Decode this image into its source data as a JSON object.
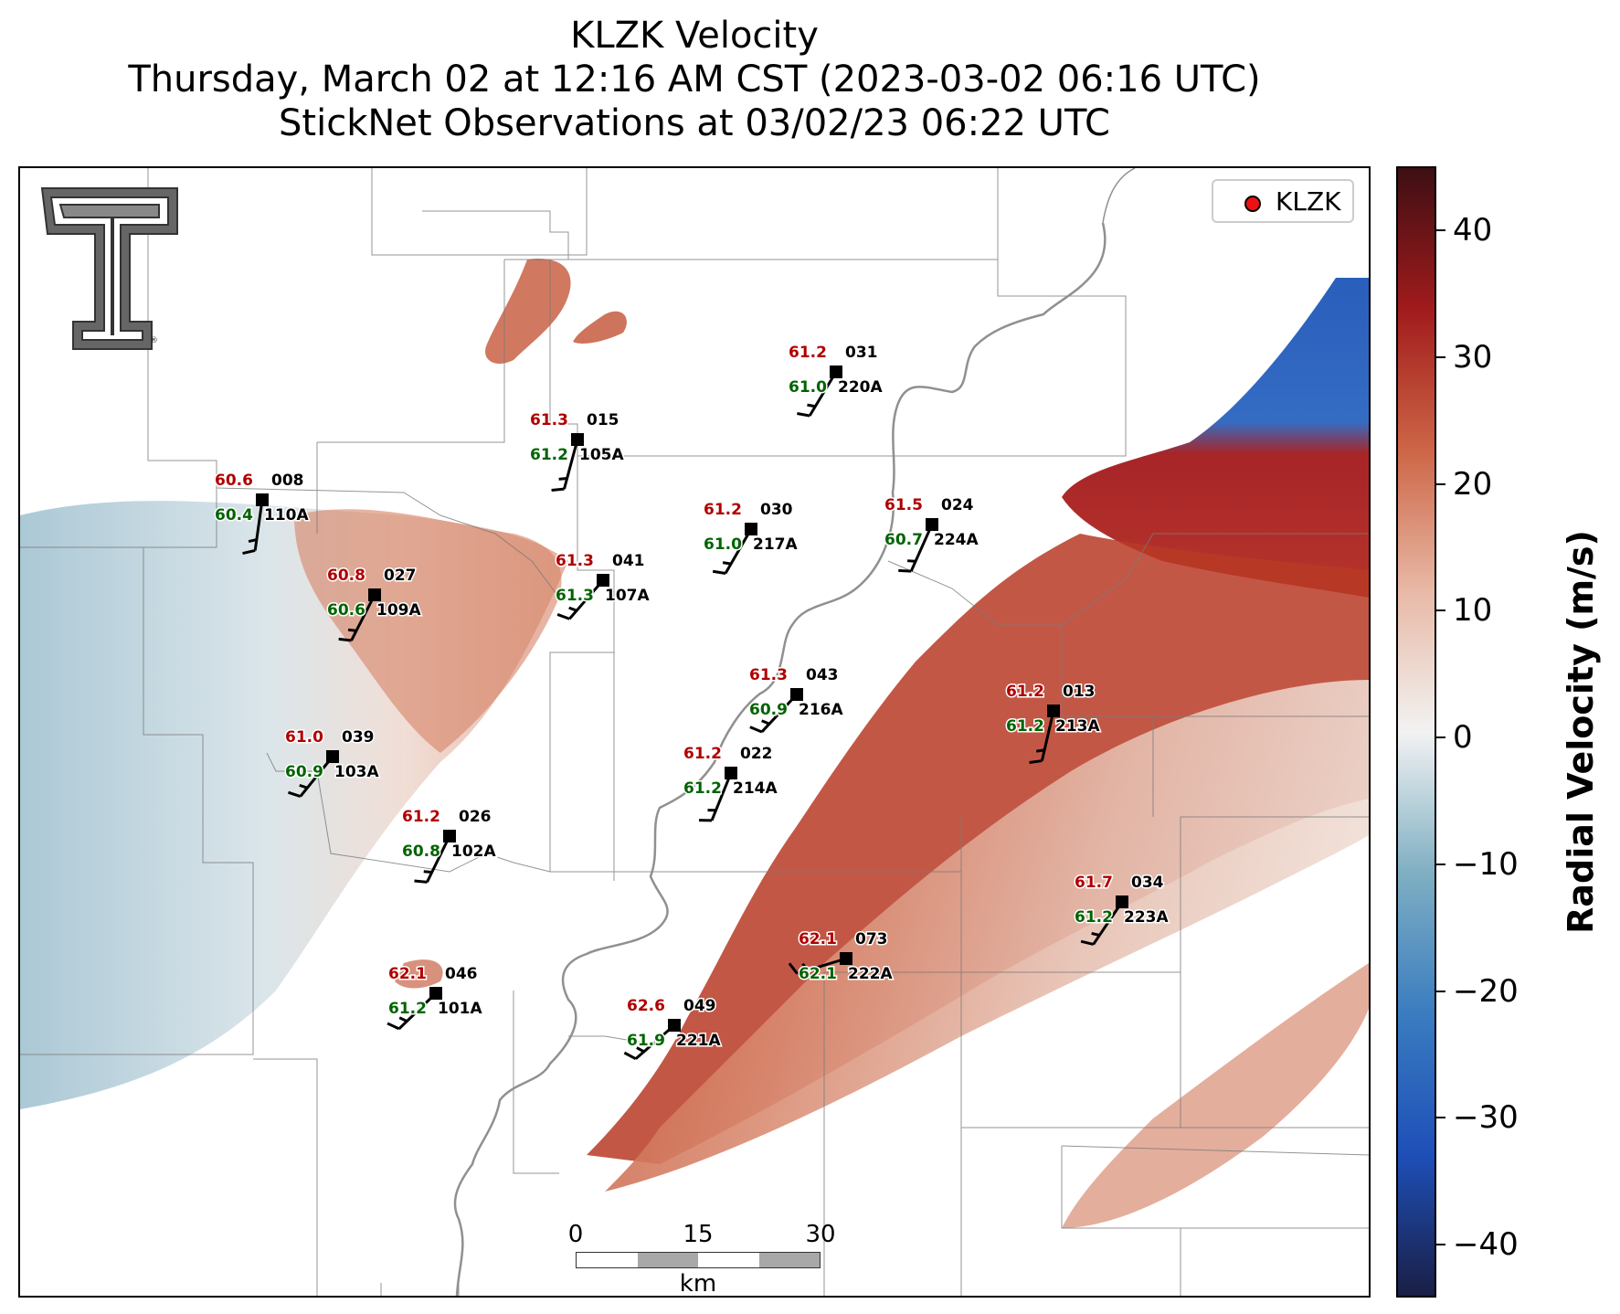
{
  "title": {
    "line1": "KLZK Velocity",
    "line2": "Thursday, March 02 at 12:16 AM CST (2023-03-02 06:16 UTC)",
    "line3": "StickNet Observations at 03/02/23 06:22 UTC"
  },
  "legend": {
    "label": "KLZK",
    "marker_color": "#ee1111"
  },
  "logo": {
    "icon": "texas-tech-double-t-logo",
    "mark": "®"
  },
  "colorbar": {
    "label": "Radial Velocity (m/s)",
    "ticks": [
      "40",
      "30",
      "20",
      "10",
      "0",
      "−10",
      "−20",
      "−30",
      "−40"
    ],
    "range": [
      -45,
      45
    ],
    "colors": {
      "neg_max": "#1a1f45",
      "neg_strong": "#1e4fb8",
      "neg_mid": "#3a7cc0",
      "neg_light": "#7fafc2",
      "zero": "#f2f2f2",
      "pos_light": "#e8b9a6",
      "pos_mid": "#cd6546",
      "pos_strong": "#a11b1c",
      "pos_max": "#3d0f14"
    }
  },
  "scalebar": {
    "ticks": [
      "0",
      "15",
      "30"
    ],
    "unit": "km"
  },
  "stations": [
    {
      "id": "110A",
      "temp": "60.6",
      "dew": "60.4",
      "dir": "008"
    },
    {
      "id": "105A",
      "temp": "61.3",
      "dew": "61.2",
      "dir": "015"
    },
    {
      "id": "220A",
      "temp": "61.2",
      "dew": "61.0",
      "dir": "031"
    },
    {
      "id": "217A",
      "temp": "61.2",
      "dew": "61.0",
      "dir": "030"
    },
    {
      "id": "224A",
      "temp": "61.5",
      "dew": "60.7",
      "dir": "024"
    },
    {
      "id": "109A",
      "temp": "60.8",
      "dew": "60.6",
      "dir": "027"
    },
    {
      "id": "107A",
      "temp": "61.3",
      "dew": "61.3",
      "dir": "041"
    },
    {
      "id": "216A",
      "temp": "61.3",
      "dew": "60.9",
      "dir": "043"
    },
    {
      "id": "213A",
      "temp": "61.2",
      "dew": "61.2",
      "dir": "013"
    },
    {
      "id": "103A",
      "temp": "61.0",
      "dew": "60.9",
      "dir": "039"
    },
    {
      "id": "214A",
      "temp": "61.2",
      "dew": "61.2",
      "dir": "022"
    },
    {
      "id": "102A",
      "temp": "61.2",
      "dew": "60.8",
      "dir": "026"
    },
    {
      "id": "223A",
      "temp": "61.7",
      "dew": "61.2",
      "dir": "034"
    },
    {
      "id": "222A",
      "temp": "62.1",
      "dew": "62.1",
      "dir": "073"
    },
    {
      "id": "101A",
      "temp": "62.1",
      "dew": "61.2",
      "dir": "046"
    },
    {
      "id": "221A",
      "temp": "62.6",
      "dew": "61.9",
      "dir": "049"
    }
  ]
}
